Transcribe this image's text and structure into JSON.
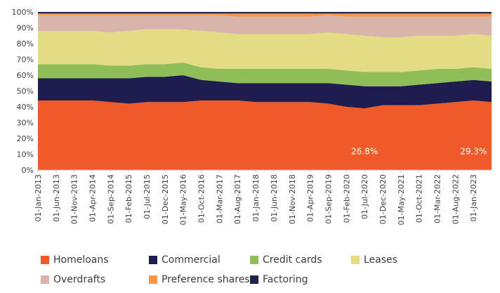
{
  "chart_data": {
    "type": "area",
    "stacked": true,
    "percent": true,
    "title": "",
    "xlabel": "",
    "ylabel": "",
    "ylim": [
      0,
      100
    ],
    "yticks": [
      "0%",
      "10%",
      "20%",
      "30%",
      "40%",
      "50%",
      "60%",
      "70%",
      "80%",
      "90%",
      "100%"
    ],
    "grid": false,
    "legend_position": "bottom",
    "xticks": [
      "01-Jan-2013",
      "01-Jun-2013",
      "01-Nov-2013",
      "01-Apr-2014",
      "01-Sep-2014",
      "01-Feb-2015",
      "01-Jul-2015",
      "01-Dec-2015",
      "01-May-2016",
      "01-Oct-2016",
      "01-Mar-2017",
      "01-Aug-2017",
      "01-Jan-2018",
      "01-Jun-2018",
      "01-Nov-2018",
      "01-Apr-2019",
      "01-Sep-2019",
      "01-Feb-2020",
      "01-Jul-2020",
      "01-Dec-2020",
      "01-May-2021",
      "01-Oct-2021",
      "01-Mar-2022",
      "01-Aug-2022",
      "01-Jan-2023"
    ],
    "x": [
      "01-Jan-2013",
      "01-Jun-2013",
      "01-Nov-2013",
      "01-Apr-2014",
      "01-Sep-2014",
      "01-Feb-2015",
      "01-Jul-2015",
      "01-Dec-2015",
      "01-May-2016",
      "01-Oct-2016",
      "01-Mar-2017",
      "01-Aug-2017",
      "01-Jan-2018",
      "01-Jun-2018",
      "01-Nov-2018",
      "01-Apr-2019",
      "01-Sep-2019",
      "01-Feb-2020",
      "01-Jul-2020",
      "01-Dec-2020",
      "01-May-2021",
      "01-Oct-2021",
      "01-Mar-2022",
      "01-Aug-2022",
      "01-Jan-2023",
      "01-Mar-2023"
    ],
    "series": [
      {
        "name": "Homeloans",
        "color": "#f05a28",
        "values": [
          44,
          44,
          44,
          44,
          43,
          42,
          43,
          43,
          43,
          44,
          44,
          44,
          43,
          43,
          43,
          43,
          42,
          40,
          39,
          41,
          41,
          41,
          42,
          43,
          44,
          43
        ]
      },
      {
        "name": "Commercial",
        "color": "#1f1d4f",
        "values": [
          14,
          14,
          14,
          14,
          15,
          16,
          16,
          16,
          17,
          13,
          12,
          11,
          12,
          12,
          12,
          12,
          13,
          14,
          14,
          12,
          12,
          13,
          13,
          13,
          13,
          13
        ]
      },
      {
        "name": "Credit cards",
        "color": "#8fbe58",
        "values": [
          9,
          9,
          9,
          9,
          8,
          8,
          8,
          8,
          8,
          8,
          8,
          9,
          9,
          9,
          9,
          9,
          9,
          9,
          9,
          9,
          9,
          9,
          9,
          8,
          8,
          8
        ]
      },
      {
        "name": "Leases",
        "color": "#e4dc84",
        "values": [
          21,
          21,
          21,
          21,
          21,
          22,
          22,
          22,
          21,
          23,
          23,
          22,
          22,
          22,
          22,
          22,
          23,
          23,
          23,
          22,
          22,
          22,
          21,
          21,
          21,
          21
        ]
      },
      {
        "name": "Overdrafts",
        "color": "#d8b4aa",
        "values": [
          10,
          10,
          10,
          10,
          11,
          10,
          9,
          9,
          9,
          10,
          11,
          11,
          11,
          11,
          11,
          11,
          11,
          11,
          12,
          13,
          13,
          12,
          12,
          12,
          11,
          12
        ]
      },
      {
        "name": "Preference shares",
        "color": "#f79646",
        "values": [
          1,
          1,
          1,
          1,
          1,
          1,
          1,
          1,
          1,
          1,
          1,
          2,
          2,
          2,
          2,
          2,
          1,
          2,
          2,
          2,
          2,
          2,
          2,
          2,
          2,
          2
        ]
      },
      {
        "name": "Factoring",
        "color": "#20224a",
        "values": [
          1,
          1,
          1,
          1,
          1,
          1,
          1,
          1,
          1,
          1,
          1,
          1,
          1,
          1,
          1,
          1,
          1,
          1,
          1,
          1,
          1,
          1,
          1,
          1,
          1,
          1
        ]
      }
    ],
    "annotations": [
      {
        "text": "26.8%",
        "x": "01-Jul-2020",
        "y": 10
      },
      {
        "text": "29.3%",
        "x": "01-Jan-2023",
        "y": 10
      }
    ]
  }
}
